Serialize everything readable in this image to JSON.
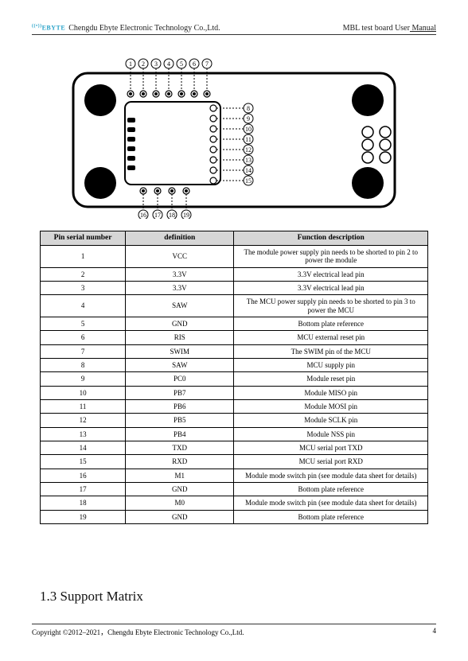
{
  "header": {
    "logo_text": "EBYTE",
    "company": "Chengdu Ebyte Electronic Technology Co.,Ltd.",
    "doc_prefix": "MBL test board User",
    "doc_suffix": " Manual"
  },
  "footer": {
    "copyright": "Copyright ©2012–2021，Chengdu Ebyte Electronic Technology Co.,Ltd.",
    "page_no": "4"
  },
  "section": {
    "number": "1.3",
    "title": "Support Matrix"
  },
  "board": {
    "stroke": "#000000",
    "fill": "#ffffff",
    "top_labels": [
      "1",
      "2",
      "3",
      "4",
      "5",
      "6",
      "7"
    ],
    "right_labels": [
      "8",
      "9",
      "10",
      "11",
      "12",
      "13",
      "14",
      "15"
    ],
    "bottom_labels": [
      "16",
      "17",
      "18",
      "19"
    ]
  },
  "pin_table": {
    "columns": [
      "Pin serial number",
      "definition",
      "Function description"
    ],
    "rows": [
      [
        "1",
        "VCC",
        "The module power supply pin needs to be shorted to pin 2 to power the module"
      ],
      [
        "2",
        "3.3V",
        "3.3V electrical lead pin"
      ],
      [
        "3",
        "3.3V",
        "3.3V electrical lead pin"
      ],
      [
        "4",
        "SAW",
        "The MCU power supply pin needs to be shorted to pin 3 to power the MCU"
      ],
      [
        "5",
        "GND",
        "Bottom plate reference"
      ],
      [
        "6",
        "RIS",
        "MCU external reset pin"
      ],
      [
        "7",
        "SWIM",
        "The SWIM pin of the MCU"
      ],
      [
        "8",
        "SAW",
        "MCU supply pin"
      ],
      [
        "9",
        "PC0",
        "Module reset pin"
      ],
      [
        "10",
        "PB7",
        "Module MISO pin"
      ],
      [
        "11",
        "PB6",
        "Module MOSI pin"
      ],
      [
        "12",
        "PB5",
        "Module SCLK pin"
      ],
      [
        "13",
        "PB4",
        "Module NSS pin"
      ],
      [
        "14",
        "TXD",
        "MCU serial port TXD"
      ],
      [
        "15",
        "RXD",
        "MCU serial port RXD"
      ],
      [
        "16",
        "M1",
        "Module mode switch pin (see module data sheet for details)"
      ],
      [
        "17",
        "GND",
        "Bottom plate reference"
      ],
      [
        "18",
        "M0",
        "Module mode switch pin (see module data sheet for details)"
      ],
      [
        "19",
        "GND",
        "Bottom plate reference"
      ]
    ]
  },
  "style": {
    "body_font": "Times New Roman, serif",
    "header_fontsize_pt": 10,
    "table_fontsize_pt": 9,
    "table_header_bg": "#d6d6d6",
    "table_border": "#000000",
    "section_fontsize_pt": 17,
    "page_bg": "#ffffff",
    "logo_color": "#2aa3c9"
  }
}
